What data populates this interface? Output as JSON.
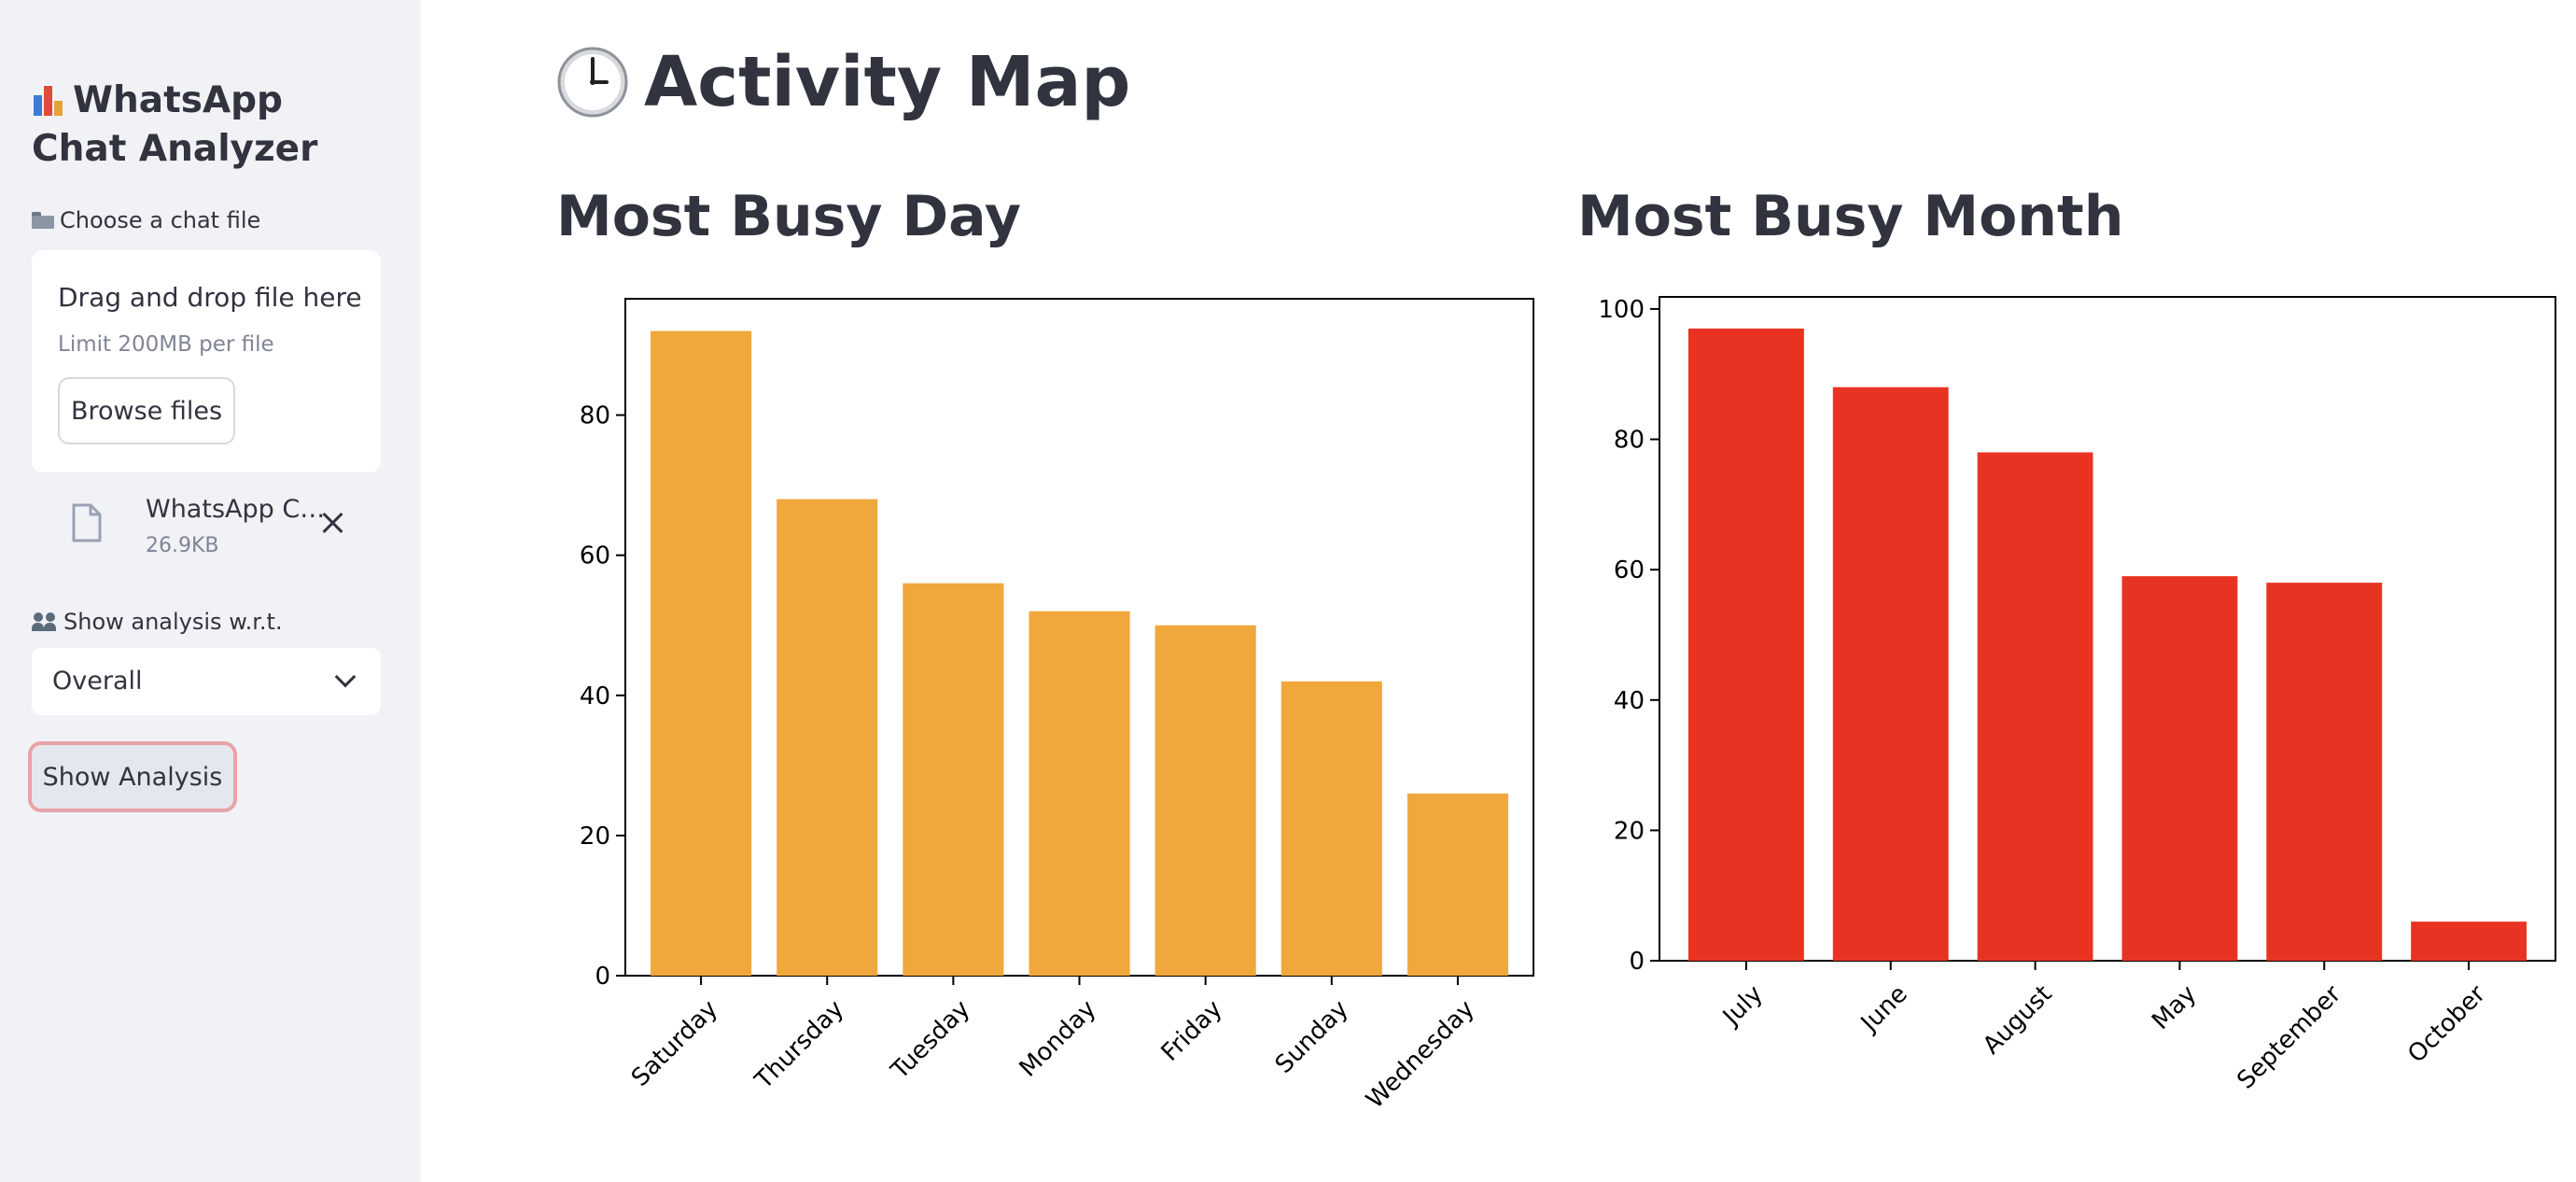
{
  "sidebar": {
    "app_title": "WhatsApp Chat Analyzer",
    "upload_label": "Choose a chat file",
    "upload_label_icon": "file-folder-icon",
    "dropzone_title": "Drag and drop file here",
    "dropzone_limit": "Limit 200MB per file",
    "browse_label": "Browse files",
    "uploaded_file_name": "WhatsApp C…",
    "uploaded_file_size": "26.9KB",
    "select_label": "Show analysis w.r.t.",
    "select_label_icon": "people-icon",
    "select_value": "Overall",
    "show_analysis_label": "Show Analysis"
  },
  "main": {
    "page_title": "Activity Map",
    "page_title_icon": "clock-icon",
    "busy_day_title": "Most Busy Day",
    "busy_month_title": "Most Busy Month"
  },
  "colors": {
    "sidebar_bg": "#f0f2f6",
    "day_bar": "#f0a73c",
    "month_bar": "#e83323",
    "text": "#31333f"
  },
  "chart_data": [
    {
      "type": "bar",
      "categories": [
        "Saturday",
        "Thursday",
        "Tuesday",
        "Monday",
        "Friday",
        "Sunday",
        "Wednesday"
      ],
      "values": [
        92,
        68,
        56,
        52,
        50,
        42,
        26
      ],
      "yticks": [
        0,
        20,
        40,
        60,
        80
      ],
      "ylim": [
        0,
        96.6
      ],
      "color": "#f0a73c",
      "grid": false,
      "title": "",
      "xlabel": "",
      "ylabel": ""
    },
    {
      "type": "bar",
      "categories": [
        "July",
        "June",
        "August",
        "May",
        "September",
        "October"
      ],
      "values": [
        97,
        88,
        78,
        59,
        58,
        6
      ],
      "yticks": [
        0,
        20,
        40,
        60,
        80,
        100
      ],
      "ylim": [
        0,
        101.85
      ],
      "color": "#e83323",
      "grid": false,
      "title": "",
      "xlabel": "",
      "ylabel": ""
    }
  ]
}
